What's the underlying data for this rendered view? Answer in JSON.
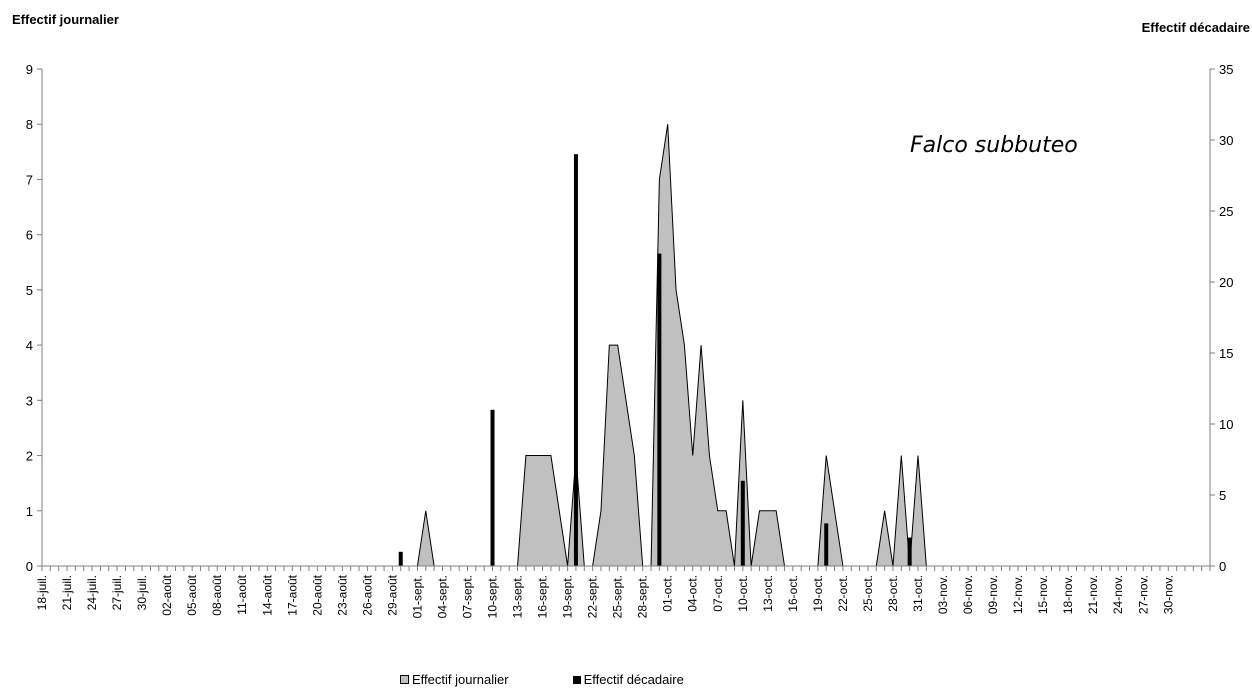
{
  "chart_data": {
    "type": "area",
    "title": "Falco subbuteo",
    "ylabel_left": "Effectif journalier",
    "ylabel_right": "Effectif décadaire",
    "ylim_left": [
      0,
      9
    ],
    "ylim_right": [
      0,
      35
    ],
    "yticks_left": [
      "0",
      "1",
      "2",
      "3",
      "4",
      "5",
      "6",
      "7",
      "8",
      "9"
    ],
    "yticks_right": [
      "0",
      "5",
      "10",
      "15",
      "20",
      "25",
      "30",
      "35"
    ],
    "grid": false,
    "legend_position": "bottom",
    "x_labels": [
      "18-juil.",
      "21-juil.",
      "24-juil.",
      "27-juil.",
      "30-juil.",
      "02-août",
      "05-août",
      "08-août",
      "11-août",
      "14-août",
      "17-août",
      "20-août",
      "23-août",
      "26-août",
      "29-août",
      "01-sept.",
      "04-sept.",
      "07-sept.",
      "10-sept.",
      "13-sept.",
      "16-sept.",
      "19-sept.",
      "22-sept.",
      "25-sept.",
      "28-sept.",
      "01-oct.",
      "04-oct.",
      "07-oct.",
      "10-oct.",
      "13-oct.",
      "16-oct.",
      "19-oct.",
      "22-oct.",
      "25-oct.",
      "28-oct.",
      "31-oct.",
      "03-nov.",
      "06-nov.",
      "09-nov.",
      "12-nov.",
      "15-nov.",
      "18-nov.",
      "21-nov.",
      "24-nov.",
      "27-nov.",
      "30-nov."
    ],
    "series": [
      {
        "name": "Effectif journalier",
        "axis": "left",
        "color": "#c0c0c0",
        "values": [
          0,
          0,
          0,
          0,
          0,
          0,
          0,
          0,
          0,
          0,
          0,
          0,
          0,
          0,
          0,
          0,
          0,
          0,
          0,
          0,
          0,
          0,
          0,
          0,
          0,
          0,
          0,
          0,
          0,
          0,
          0,
          0,
          0,
          0,
          0,
          0,
          0,
          0,
          0,
          0,
          0,
          0,
          0,
          0,
          0,
          0,
          1,
          0,
          0,
          0,
          0,
          0,
          0,
          0,
          0,
          0,
          0,
          0,
          2,
          2,
          2,
          2,
          1,
          0,
          2,
          0,
          0,
          1,
          4,
          4,
          3,
          2,
          0,
          0,
          7,
          8,
          5,
          4,
          2,
          4,
          2,
          1,
          1,
          0,
          3,
          0,
          1,
          1,
          1,
          0,
          0,
          0,
          0,
          0,
          2,
          1,
          0,
          0,
          0,
          0,
          0,
          1,
          0,
          2,
          0,
          2,
          0,
          0,
          0,
          0,
          0,
          0,
          0,
          0,
          0,
          0,
          0,
          0,
          0,
          0,
          0,
          0,
          0,
          0,
          0,
          0,
          0,
          0,
          0,
          0,
          0,
          0,
          0,
          0,
          0,
          0,
          0,
          0,
          0,
          0,
          0
        ]
      },
      {
        "name": "Effectif décadaire",
        "axis": "right",
        "color": "#000000",
        "bars": [
          {
            "day": 43,
            "value": 1
          },
          {
            "day": 54,
            "value": 11
          },
          {
            "day": 64,
            "value": 29
          },
          {
            "day": 74,
            "value": 22
          },
          {
            "day": 84,
            "value": 6
          },
          {
            "day": 94,
            "value": 3
          },
          {
            "day": 104,
            "value": 2
          }
        ]
      }
    ]
  },
  "legend": {
    "daily_label": "Effectif journalier",
    "decadal_label": "Effectif décadaire"
  }
}
